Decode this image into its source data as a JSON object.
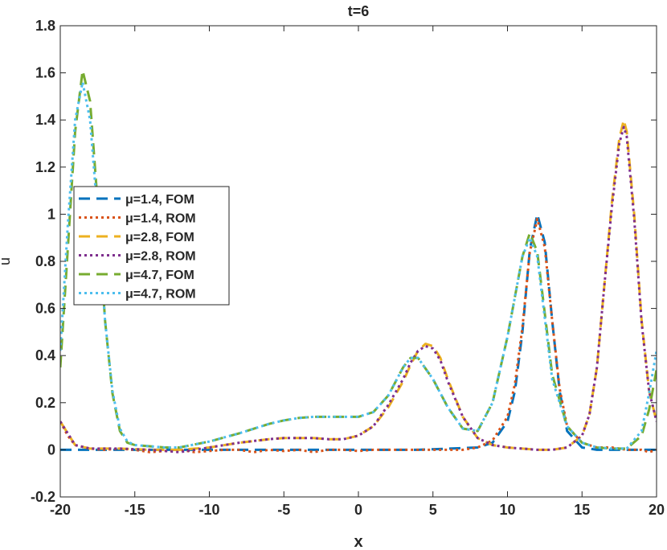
{
  "chart_data": {
    "type": "line",
    "title": "t=6",
    "xlabel": "x",
    "ylabel": "u",
    "xlim": [
      -20,
      20
    ],
    "ylim": [
      -0.2,
      1.8
    ],
    "xticks": [
      -20,
      -15,
      -10,
      -5,
      0,
      5,
      10,
      15,
      20
    ],
    "xtick_labels": [
      "-20",
      "-15",
      "-10",
      "-5",
      "0",
      "5",
      "10",
      "15",
      "20"
    ],
    "yticks": [
      -0.2,
      0,
      0.2,
      0.4,
      0.6,
      0.8,
      1,
      1.2,
      1.4,
      1.6,
      1.8
    ],
    "ytick_labels": [
      "-0.2",
      "0",
      "0.2",
      "0.4",
      "0.6",
      "0.8",
      "1",
      "1.2",
      "1.4",
      "1.6",
      "1.8"
    ],
    "grid": false,
    "legend_position": "left",
    "series": [
      {
        "name": "μ=1.4, FOM",
        "color": "#0072BD",
        "dash": "dashed",
        "x": [
          -20,
          -16,
          -12,
          -8,
          -4,
          0,
          4,
          8,
          9,
          10,
          10.5,
          11,
          11.5,
          12,
          12.5,
          13,
          13.5,
          14,
          15,
          16,
          18,
          20
        ],
        "y": [
          0,
          0,
          0,
          0,
          0,
          0,
          0,
          0.01,
          0.03,
          0.12,
          0.25,
          0.5,
          0.85,
          1.0,
          0.88,
          0.55,
          0.25,
          0.08,
          0.01,
          0,
          0,
          0
        ]
      },
      {
        "name": "μ=1.4, ROM",
        "color": "#D95319",
        "dash": "dotted",
        "x": [
          -20,
          -19.5,
          -19,
          -18,
          -17,
          -16,
          -15,
          -14,
          -13,
          -12,
          -11,
          -10,
          -9,
          -8,
          -7,
          -6,
          -5,
          -4,
          -3,
          -2,
          -1,
          0,
          1,
          2,
          3,
          4,
          5,
          6,
          7,
          8,
          9,
          10,
          10.5,
          11,
          11.5,
          12,
          12.5,
          13,
          13.5,
          14,
          15,
          16,
          17,
          18,
          19,
          19.5,
          20
        ],
        "y": [
          0.12,
          0.06,
          0.02,
          0.005,
          0,
          0.005,
          0,
          -0.01,
          -0.005,
          0,
          -0.01,
          -0.005,
          0,
          0,
          -0.01,
          0,
          -0.005,
          0,
          -0.01,
          0,
          0,
          -0.005,
          0,
          0,
          0,
          0,
          0,
          0,
          0,
          0.01,
          0.04,
          0.14,
          0.28,
          0.52,
          0.84,
          0.98,
          0.86,
          0.55,
          0.26,
          0.1,
          0.03,
          0.01,
          0.01,
          0,
          0,
          -0.01,
          0
        ]
      },
      {
        "name": "μ=2.8, FOM",
        "color": "#EDB120",
        "dash": "dashed",
        "x": [
          -20,
          -19,
          -18,
          -16,
          -14,
          -12,
          -10,
          -8,
          -6,
          -5,
          -4,
          -3,
          -2,
          -1,
          0,
          1,
          2,
          3,
          3.5,
          4,
          4.5,
          5,
          5.5,
          6,
          7,
          8,
          9,
          10,
          11,
          12,
          13,
          14,
          15,
          15.5,
          16,
          16.5,
          17,
          17.5,
          17.8,
          18,
          18.5,
          19,
          19.5,
          20
        ],
        "y": [
          0.12,
          0.02,
          0.005,
          0.005,
          0,
          0,
          0.01,
          0.03,
          0.045,
          0.05,
          0.05,
          0.05,
          0.045,
          0.045,
          0.06,
          0.1,
          0.18,
          0.29,
          0.36,
          0.42,
          0.45,
          0.44,
          0.39,
          0.3,
          0.14,
          0.05,
          0.02,
          0.01,
          0.005,
          0,
          0,
          0.01,
          0.06,
          0.15,
          0.35,
          0.7,
          1.05,
          1.32,
          1.4,
          1.35,
          1.0,
          0.55,
          0.25,
          0.12
        ]
      },
      {
        "name": "μ=2.8, ROM",
        "color": "#7E2F8E",
        "dash": "dotted",
        "x": [
          -20,
          -19,
          -18,
          -16,
          -14,
          -12,
          -10,
          -8,
          -6,
          -5,
          -4,
          -3,
          -2,
          -1,
          0,
          1,
          2,
          3,
          3.5,
          4,
          4.5,
          5,
          5.5,
          6,
          7,
          8,
          9,
          10,
          11,
          12,
          13,
          14,
          15,
          15.5,
          16,
          16.5,
          17,
          17.5,
          17.8,
          18,
          18.5,
          19,
          19.5,
          20
        ],
        "y": [
          0.12,
          0.02,
          0.005,
          0.005,
          0,
          -0.01,
          0.01,
          0.03,
          0.045,
          0.05,
          0.05,
          0.05,
          0.045,
          0.045,
          0.06,
          0.1,
          0.19,
          0.3,
          0.37,
          0.42,
          0.44,
          0.43,
          0.38,
          0.29,
          0.14,
          0.05,
          0.02,
          0.01,
          0.005,
          0,
          0,
          0.01,
          0.06,
          0.15,
          0.35,
          0.7,
          1.03,
          1.3,
          1.37,
          1.33,
          0.98,
          0.54,
          0.25,
          0.12
        ]
      },
      {
        "name": "μ=4.7, FOM",
        "color": "#77AC30",
        "dash": "dashed",
        "x": [
          -20,
          -19.5,
          -19,
          -18.5,
          -18,
          -17.5,
          -17,
          -16.5,
          -16,
          -15.5,
          -15,
          -14,
          -13,
          -12,
          -10,
          -8,
          -6,
          -5,
          -4,
          -3,
          -2,
          -1,
          0,
          1,
          2,
          3,
          3.5,
          4,
          5,
          6,
          7,
          8,
          9,
          10,
          11,
          11.5,
          12,
          12.5,
          13,
          14,
          15,
          16,
          17,
          18,
          19,
          19.5,
          20
        ],
        "y": [
          0.35,
          0.85,
          1.35,
          1.61,
          1.48,
          1.05,
          0.55,
          0.24,
          0.08,
          0.03,
          0.02,
          0.015,
          0.01,
          0.01,
          0.035,
          0.07,
          0.11,
          0.125,
          0.135,
          0.14,
          0.14,
          0.14,
          0.14,
          0.16,
          0.23,
          0.35,
          0.39,
          0.39,
          0.3,
          0.18,
          0.09,
          0.08,
          0.2,
          0.48,
          0.82,
          0.92,
          0.84,
          0.58,
          0.32,
          0.1,
          0.03,
          0.01,
          0.005,
          0.005,
          0.06,
          0.17,
          0.34
        ]
      },
      {
        "name": "μ=4.7, ROM",
        "color": "#4DBEEE",
        "dash": "dotted",
        "x": [
          -20,
          -19.5,
          -19,
          -18.5,
          -18,
          -17.5,
          -17,
          -16.5,
          -16,
          -15.5,
          -15,
          -14,
          -13,
          -12,
          -10,
          -8,
          -6,
          -5,
          -4,
          -3,
          -2,
          -1,
          0,
          1,
          2,
          3,
          3.5,
          4,
          5,
          6,
          7,
          8,
          9,
          10,
          11,
          11.5,
          12,
          12.5,
          13,
          14,
          15,
          16,
          17,
          18,
          19,
          19.5,
          20
        ],
        "y": [
          0.42,
          0.95,
          1.4,
          1.56,
          1.4,
          1.0,
          0.55,
          0.25,
          0.09,
          0.035,
          0.02,
          0.015,
          0.01,
          0.01,
          0.035,
          0.07,
          0.11,
          0.125,
          0.135,
          0.14,
          0.14,
          0.14,
          0.14,
          0.16,
          0.23,
          0.35,
          0.39,
          0.39,
          0.3,
          0.18,
          0.09,
          0.08,
          0.2,
          0.48,
          0.82,
          0.9,
          0.82,
          0.56,
          0.3,
          0.1,
          0.03,
          0.01,
          0.005,
          0.005,
          0.08,
          0.24,
          0.42
        ]
      }
    ]
  }
}
